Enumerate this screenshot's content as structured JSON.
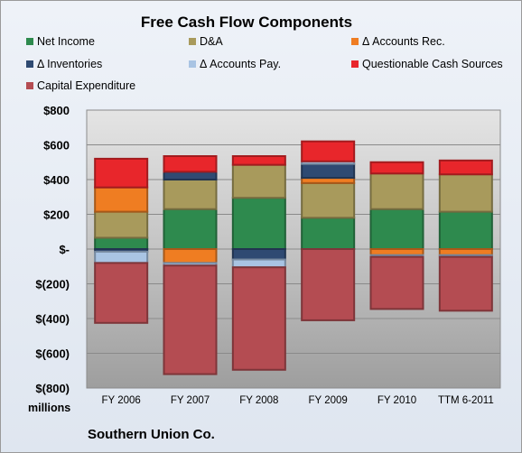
{
  "colors": {
    "net_income": "#2e8a4e",
    "da": "#a89a5c",
    "accounts_rec": "#ef7d22",
    "inventories": "#2f4a72",
    "accounts_pay": "#a9c4e3",
    "questionable": "#e8262b",
    "capex": "#b44c52"
  },
  "chart_data": {
    "type": "bar",
    "stacked": true,
    "title": "Free Cash Flow Components",
    "units_label": "millions",
    "company": "Southern Union Co.",
    "categories": [
      "FY 2006",
      "FY 2007",
      "FY 2008",
      "FY 2009",
      "FY 2010",
      "TTM 6-2011"
    ],
    "ylim": [
      -800,
      800
    ],
    "yticks": [
      -800,
      -600,
      -400,
      -200,
      0,
      200,
      400,
      600,
      800
    ],
    "ytick_labels": [
      "$(800)",
      "$(600)",
      "$(400)",
      "$(200)",
      "$-",
      "$200",
      "$400",
      "$600",
      "$800"
    ],
    "legend": {
      "net_income": "Net Income",
      "da": "D&A",
      "accounts_rec": "Δ Accounts Rec.",
      "inventories": "Δ Inventories",
      "accounts_pay": "Δ Accounts Pay.",
      "questionable": "Questionable Cash Sources",
      "capex": "Capital Expenditure"
    },
    "series": [
      {
        "key": "net_income",
        "name": "Net Income",
        "values": [
          65,
          230,
          295,
          180,
          230,
          215
        ]
      },
      {
        "key": "da",
        "name": "D&A",
        "values": [
          150,
          170,
          190,
          200,
          205,
          215
        ]
      },
      {
        "key": "accounts_rec",
        "name": "Δ Accounts Rec.",
        "values": [
          140,
          -80,
          0,
          30,
          -35,
          -35
        ]
      },
      {
        "key": "inventories",
        "name": "Δ Inventories",
        "values": [
          -15,
          45,
          -60,
          80,
          0,
          0
        ]
      },
      {
        "key": "accounts_pay",
        "name": "Δ Accounts Pay.",
        "values": [
          -65,
          -15,
          -45,
          15,
          -10,
          -10
        ]
      },
      {
        "key": "questionable",
        "name": "Questionable Cash Sources",
        "values": [
          165,
          90,
          50,
          115,
          65,
          80
        ]
      },
      {
        "key": "capex",
        "name": "Capital Expenditure",
        "values": [
          -345,
          -625,
          -590,
          -410,
          -300,
          -310
        ]
      }
    ]
  }
}
